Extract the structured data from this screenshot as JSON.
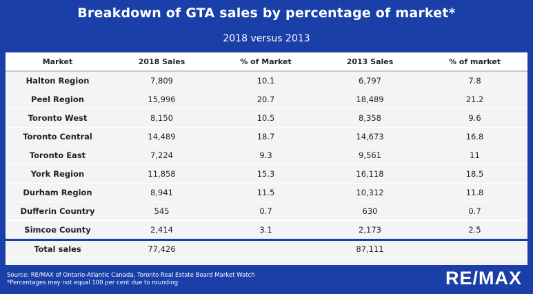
{
  "header": {
    "title": "Breakdown of GTA sales by percentage of market*",
    "subtitle": "2018 versus 2013"
  },
  "chart_data": {
    "type": "table",
    "columns": [
      "Market",
      "2018 Sales",
      "% of Market",
      "2013 Sales",
      "% of market"
    ],
    "rows": [
      [
        "Halton Region",
        "7,809",
        "10.1",
        "6,797",
        "7.8"
      ],
      [
        "Peel Region",
        "15,996",
        "20.7",
        "18,489",
        "21.2"
      ],
      [
        "Toronto West",
        "8,150",
        "10.5",
        "8,358",
        "9.6"
      ],
      [
        "Toronto Central",
        "14,489",
        "18.7",
        "14,673",
        "16.8"
      ],
      [
        "Toronto East",
        "7,224",
        "9.3",
        "9,561",
        "11"
      ],
      [
        "York Region",
        "11,858",
        "15.3",
        "16,118",
        "18.5"
      ],
      [
        "Durham Region",
        "8,941",
        "11.5",
        "10,312",
        "11.8"
      ],
      [
        "Dufferin Country",
        "545",
        "0.7",
        "630",
        "0.7"
      ],
      [
        "Simcoe County",
        "2,414",
        "3.1",
        "2,173",
        "2.5"
      ]
    ],
    "total": [
      "Total sales",
      "77,426",
      "",
      "87,111",
      ""
    ]
  },
  "footer": {
    "source": "Source:  RE/MAX of Ontario-Atlantic Canada, Toronto Real Estate Board Market Watch",
    "note": "*Percentages may not equal 100 per cent due to rounding"
  },
  "logo": {
    "text": "RE/MAX"
  }
}
